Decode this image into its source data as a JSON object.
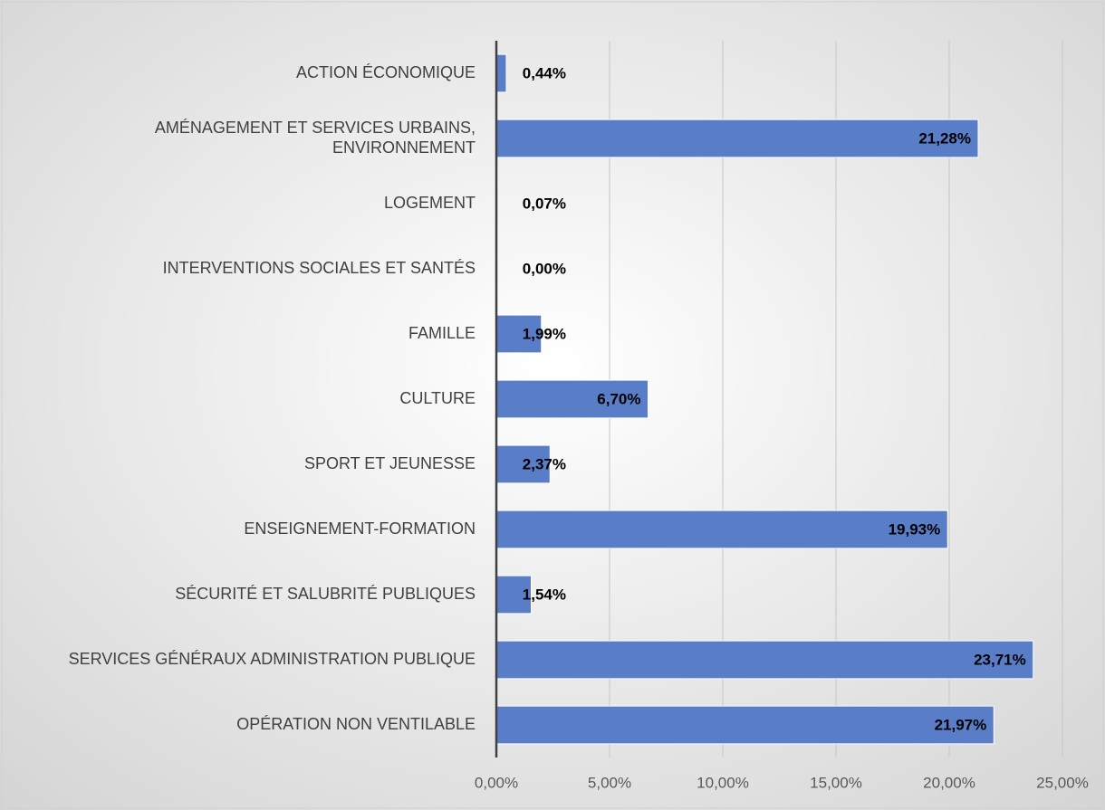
{
  "chart_data": {
    "type": "hbar",
    "categories": [
      "ACTION ÉCONOMIQUE",
      "AMÉNAGEMENT ET SERVICES URBAINS, ENVIRONNEMENT",
      "LOGEMENT",
      "INTERVENTIONS SOCIALES ET SANTÉS",
      "FAMILLE",
      "CULTURE",
      "SPORT ET JEUNESSE",
      "ENSEIGNEMENT-FORMATION",
      "SÉCURITÉ ET SALUBRITÉ PUBLIQUES",
      "SERVICES GÉNÉRAUX ADMINISTRATION PUBLIQUE",
      "OPÉRATION NON VENTILABLE"
    ],
    "values": [
      0.44,
      21.28,
      0.07,
      0.0,
      1.99,
      6.7,
      2.37,
      19.93,
      1.54,
      23.71,
      21.97
    ],
    "value_labels": [
      "0,44%",
      "21,28%",
      "0,07%",
      "0,00%",
      "1,99%",
      "6,70%",
      "2,37%",
      "19,93%",
      "1,54%",
      "23,71%",
      "21,97%"
    ],
    "color": "#5a7dc8",
    "xlim": [
      0,
      25
    ],
    "xticks": [
      {
        "value": 0,
        "label": "0,00%"
      },
      {
        "value": 5,
        "label": "5,00%"
      },
      {
        "value": 10,
        "label": "10,00%"
      },
      {
        "value": 15,
        "label": "15,00%"
      },
      {
        "value": 20,
        "label": "20,00%"
      },
      {
        "value": 25,
        "label": "25,00%"
      }
    ],
    "grid": true
  }
}
